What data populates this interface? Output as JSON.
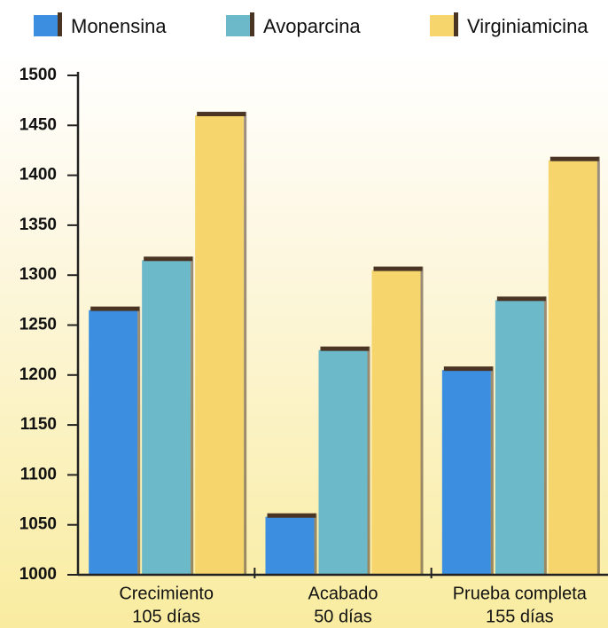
{
  "chart_data": {
    "type": "bar",
    "categories": [
      [
        "Crecimiento",
        "105 días"
      ],
      [
        "Acabado",
        "50 días"
      ],
      [
        "Prueba completa",
        "155 días"
      ]
    ],
    "series": [
      {
        "name": "Monensina",
        "color": "#3b8ee0",
        "values": [
          1265,
          1058,
          1205
        ]
      },
      {
        "name": "Avoparcina",
        "color": "#6cb9c9",
        "values": [
          1315,
          1225,
          1275
        ]
      },
      {
        "name": "Virginiamicina",
        "color": "#f6d66c",
        "values": [
          1460,
          1305,
          1415
        ]
      }
    ],
    "ylim": [
      1000,
      1500
    ],
    "yticks": [
      1000,
      1050,
      1100,
      1150,
      1200,
      1250,
      1300,
      1350,
      1400,
      1450,
      1500
    ]
  }
}
